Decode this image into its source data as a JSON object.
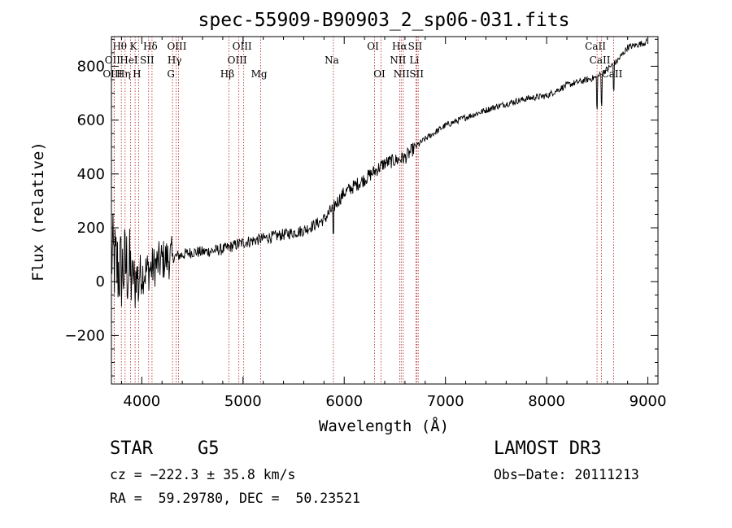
{
  "chart_data": {
    "type": "line",
    "title": "spec-55909-B90903_2_sp06-031.fits",
    "xlabel": "Wavelength (Å)",
    "ylabel": "Flux (relative)",
    "xlim": [
      3700,
      9100
    ],
    "ylim": [
      -380,
      910
    ],
    "xticks": [
      "4000",
      "5000",
      "6000",
      "7000",
      "8000",
      "9000"
    ],
    "yticks": [
      "−200",
      "0",
      "200",
      "400",
      "600",
      "800"
    ],
    "series": [
      {
        "name": "flux",
        "x": [
          3700,
          3750,
          3800,
          3850,
          3900,
          4000,
          4100,
          4200,
          4300,
          4400,
          4500,
          4600,
          4800,
          5000,
          5200,
          5400,
          5600,
          5800,
          6000,
          6200,
          6400,
          6600,
          6700,
          6800,
          7000,
          7200,
          7500,
          7800,
          8000,
          8200,
          8400,
          8500,
          8600,
          8700,
          8800,
          8900,
          8990
        ],
        "y": [
          100,
          50,
          40,
          60,
          20,
          30,
          50,
          80,
          90,
          100,
          110,
          110,
          120,
          145,
          160,
          175,
          190,
          230,
          330,
          380,
          440,
          460,
          500,
          530,
          580,
          610,
          650,
          680,
          690,
          730,
          750,
          760,
          790,
          820,
          870,
          880,
          890
        ]
      }
    ],
    "spectral_lines": [
      {
        "label": "Hθ",
        "x": 3798,
        "row": 1
      },
      {
        "label": "OII",
        "x": 3727,
        "row": 2
      },
      {
        "label": "OIII",
        "x": 3727,
        "row": 3
      },
      {
        "label": "Hη",
        "x": 3835,
        "row": 3
      },
      {
        "label": "K",
        "x": 3934,
        "row": 1
      },
      {
        "label": "HeI",
        "x": 3889,
        "row": 2
      },
      {
        "label": "H",
        "x": 3968,
        "row": 3
      },
      {
        "label": "Hδ",
        "x": 4101,
        "row": 1
      },
      {
        "label": "SII",
        "x": 4068,
        "row": 2
      },
      {
        "label": "OIII",
        "x": 4363,
        "row": 1
      },
      {
        "label": "Hγ",
        "x": 4340,
        "row": 2
      },
      {
        "label": "G",
        "x": 4304,
        "row": 3
      },
      {
        "label": "OIII",
        "x": 5007,
        "row": 1
      },
      {
        "label": "OIII",
        "x": 4959,
        "row": 2
      },
      {
        "label": "Hβ",
        "x": 4861,
        "row": 3
      },
      {
        "label": "Mg",
        "x": 5175,
        "row": 3
      },
      {
        "label": "Na",
        "x": 5893,
        "row": 2
      },
      {
        "label": "OI",
        "x": 6300,
        "row": 1
      },
      {
        "label": "OI",
        "x": 6364,
        "row": 3
      },
      {
        "label": "Hα",
        "x": 6563,
        "row": 1
      },
      {
        "label": "SII",
        "x": 6717,
        "row": 1
      },
      {
        "label": "NII",
        "x": 6548,
        "row": 2
      },
      {
        "label": "Li",
        "x": 6708,
        "row": 2
      },
      {
        "label": "NII",
        "x": 6583,
        "row": 3
      },
      {
        "label": "SII",
        "x": 6731,
        "row": 3
      },
      {
        "label": "CaII",
        "x": 8498,
        "row": 1
      },
      {
        "label": "CaII",
        "x": 8542,
        "row": 2
      },
      {
        "label": "CaII",
        "x": 8662,
        "row": 3
      }
    ]
  },
  "info": {
    "class": "STAR",
    "subclass": "G5",
    "survey": "LAMOST DR3",
    "cz": "cz = −222.3 ± 35.8 km/s",
    "obsdate": "Obs−Date: 20111213",
    "radec": "RA =  59.29780, DEC =  50.23521"
  }
}
